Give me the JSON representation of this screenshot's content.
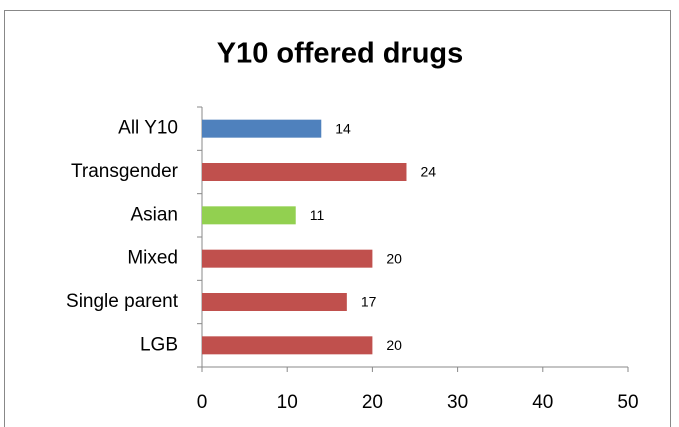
{
  "chart_data": {
    "type": "bar",
    "orientation": "horizontal",
    "title": "Y10 offered drugs",
    "categories": [
      "All Y10",
      "Transgender",
      "Asian",
      "Mixed",
      "Single parent",
      "LGB"
    ],
    "values": [
      14,
      24,
      11,
      20,
      17,
      20
    ],
    "colors": [
      "#4f81bd",
      "#c0504d",
      "#92d050",
      "#c0504d",
      "#c0504d",
      "#c0504d"
    ],
    "xlim": [
      0,
      50
    ],
    "xticks": [
      0,
      10,
      20,
      30,
      40,
      50
    ]
  }
}
